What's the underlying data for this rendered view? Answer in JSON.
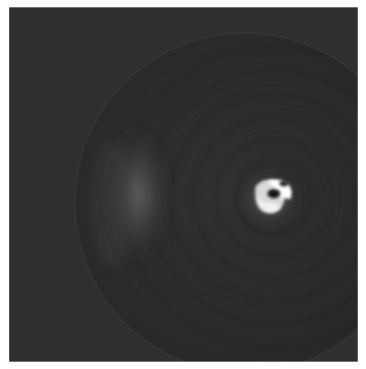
{
  "image": {
    "kind": "grayscale-scan",
    "background_color": "#2f2f2f",
    "disk_color": "#2b2b2b",
    "highlight_color": "#ffffff",
    "border_color": "#ffffff"
  }
}
